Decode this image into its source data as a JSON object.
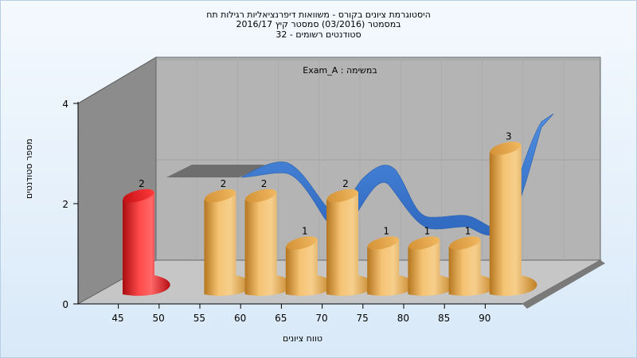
{
  "title_lines": [
    "היסטוגרמת ציונים בקורס - משוואות דיפרנציאליות רגילות תח",
    "במסמטר  (03/2016)  סמסטר קיץ 2016/17",
    "סטודנטים רשומים - 32"
  ],
  "chart_data": {
    "type": "bar",
    "title": "היסטוגרמת ציונים בקורס - משוואות דיפרנציאליות רגילות תח",
    "subtitle": "במסמטר  (03/2016)  סמסטר קיץ 2016/17 | סטודנטים רשומים - 32",
    "annotation": "Exam_A : במשימה",
    "xlabel": "טווח ציונים",
    "ylabel": "מספר סטודנטים",
    "categories": [
      "45",
      "50",
      "55",
      "60",
      "65",
      "70",
      "75",
      "80",
      "85",
      "90"
    ],
    "ylim": [
      0,
      4
    ],
    "y_ticks": [
      "0",
      "2",
      "4"
    ],
    "series": [
      {
        "values": [
          2,
          null,
          2,
          2,
          1,
          2,
          1,
          1,
          1,
          3
        ],
        "labels": [
          "2",
          "",
          "2",
          "2",
          "1",
          "2",
          "1",
          "1",
          "1",
          "3"
        ]
      }
    ],
    "highlighted_category": "45",
    "grid": true,
    "colors": {
      "bar": "#e7a84a",
      "highlight_bar": "#e8202a",
      "trend_ribbon": "#3a78cf",
      "wall": "#b5b5b5",
      "left_wall": "#888888"
    }
  }
}
